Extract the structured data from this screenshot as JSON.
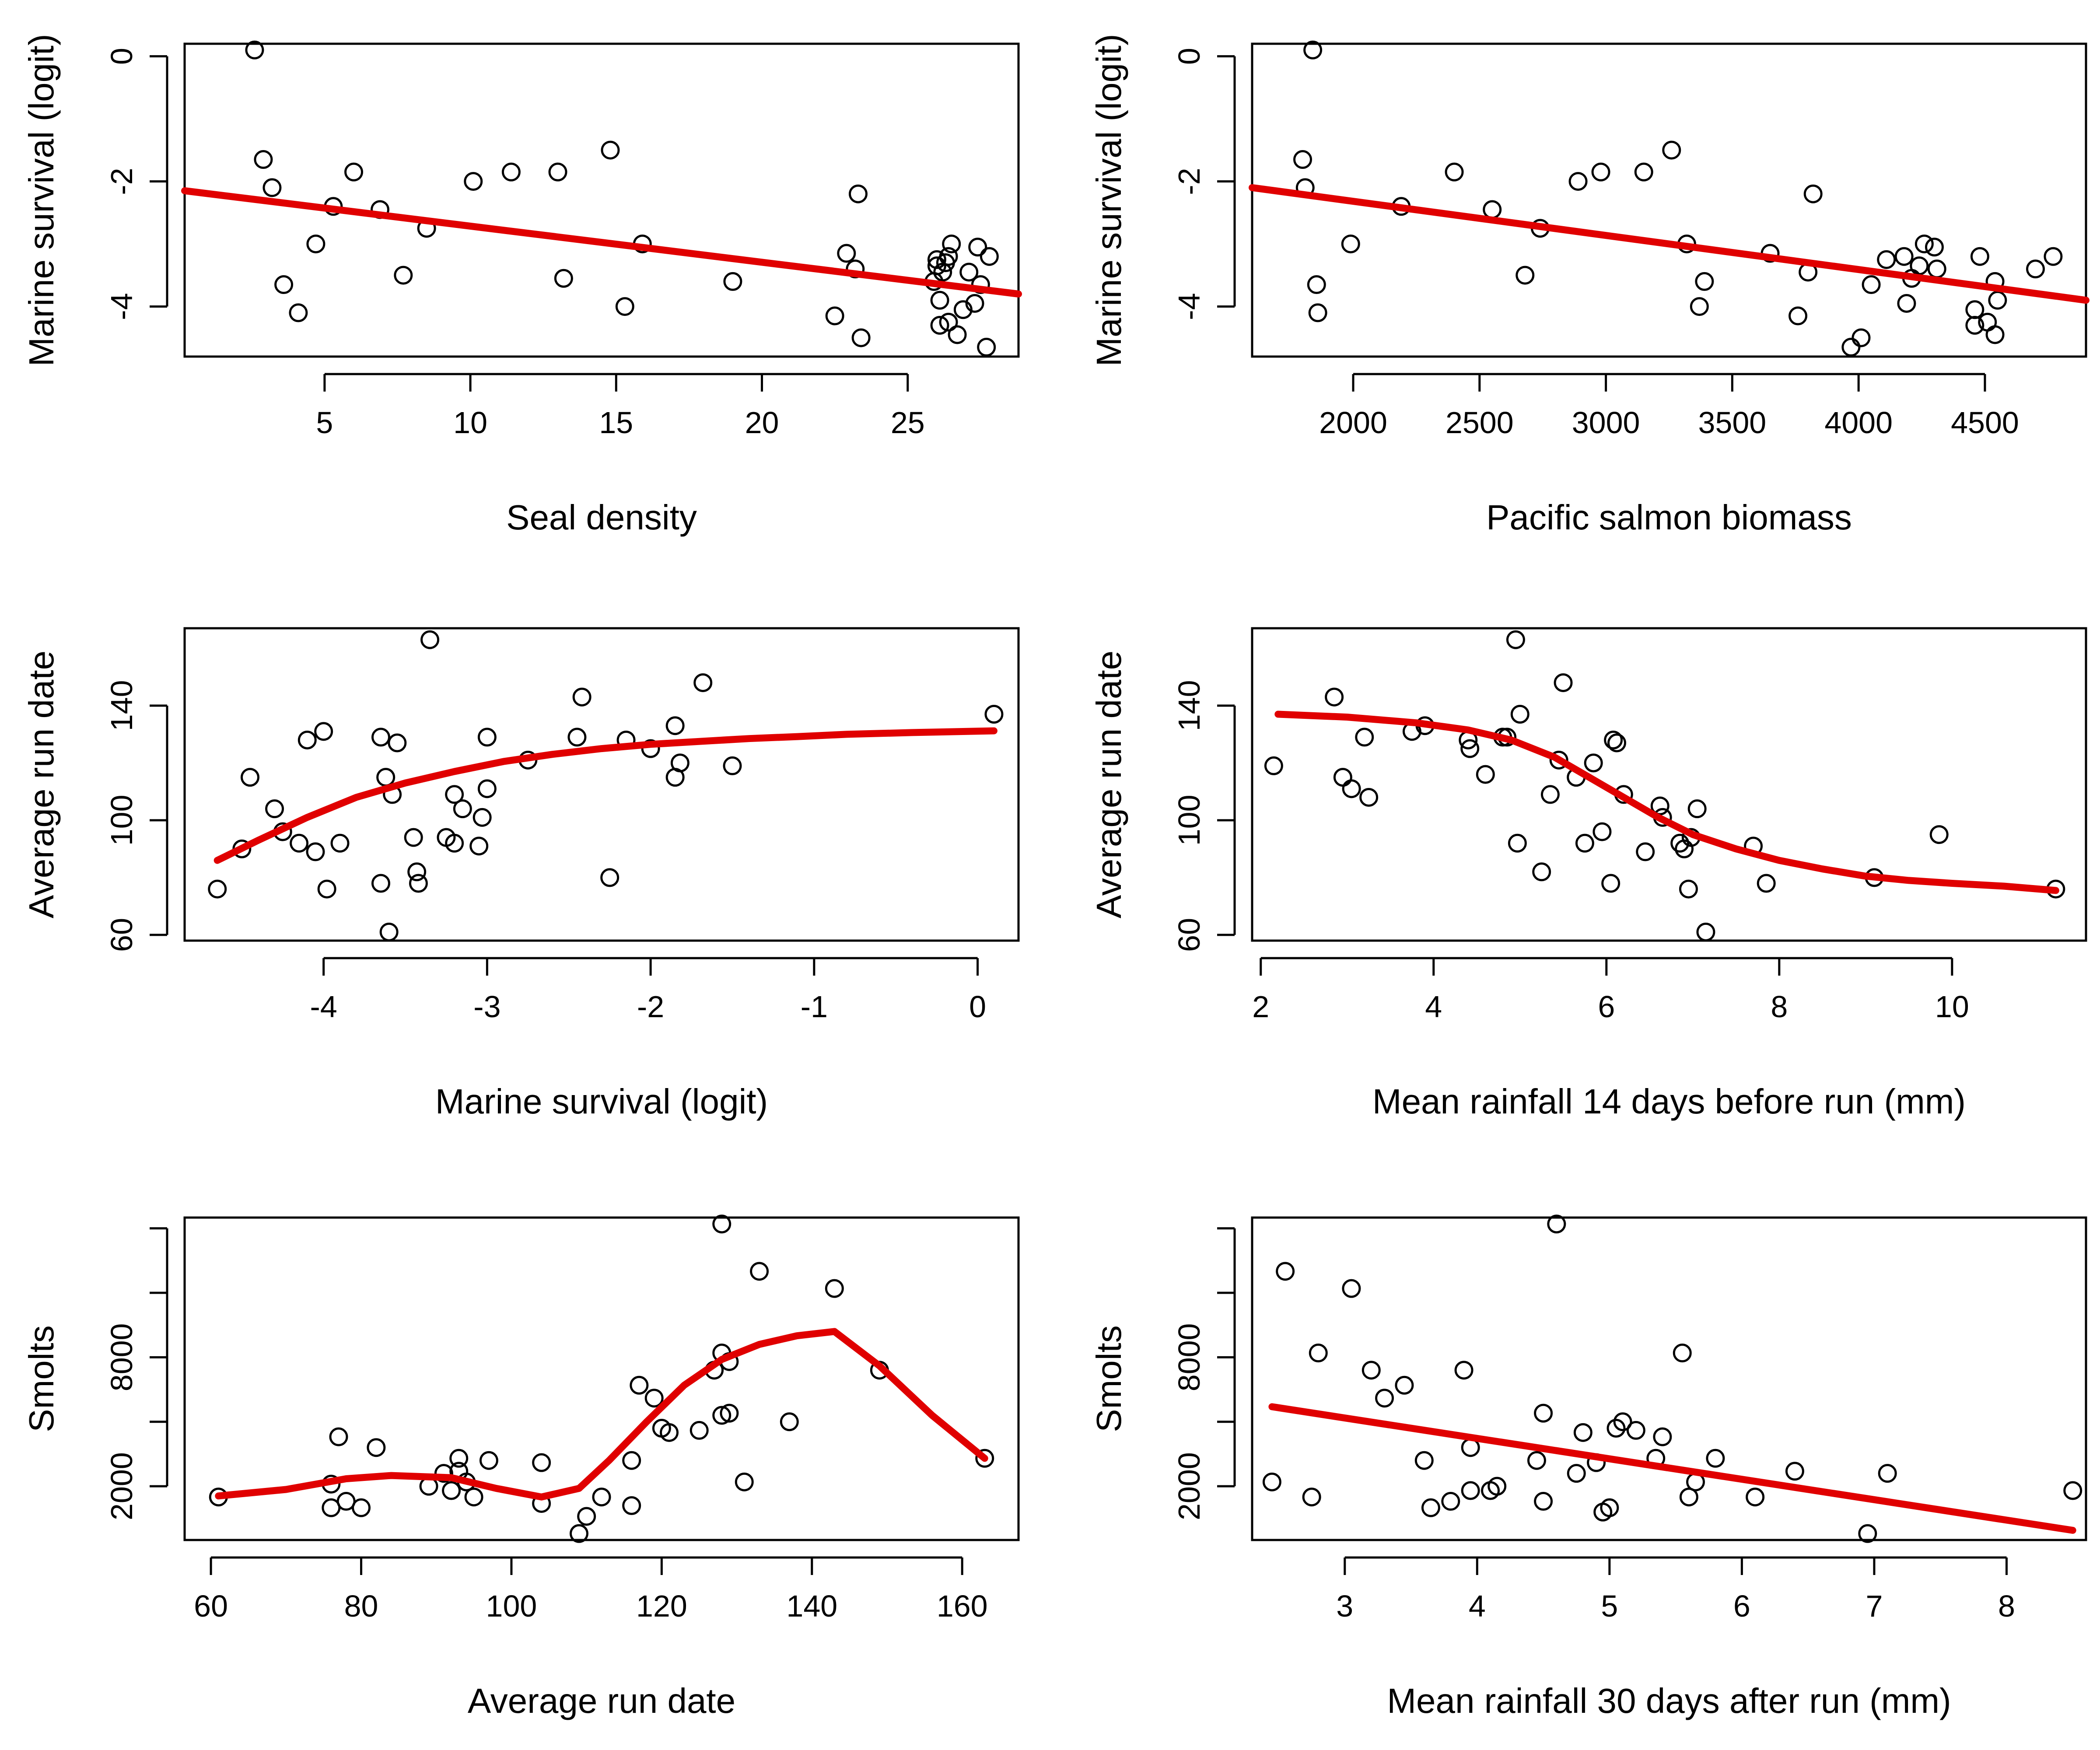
{
  "colors": {
    "points": "#000000",
    "fit_line": "#e00000",
    "background": "#ffffff"
  },
  "chart_data": [
    {
      "type": "scatter",
      "xlabel": "Seal density",
      "ylabel": "Marine survival (logit)",
      "xlim": [
        0.2,
        28.8
      ],
      "ylim": [
        -4.8,
        0.2
      ],
      "xticks": [
        5,
        10,
        15,
        20,
        25
      ],
      "xtick_labels": [
        "5",
        "10",
        "15",
        "20",
        "25"
      ],
      "yticks": [
        -4,
        -2,
        0
      ],
      "ytick_labels": [
        "-4",
        "-2",
        "0"
      ],
      "grid": false,
      "points": [
        [
          2.6,
          0.1
        ],
        [
          2.9,
          -1.65
        ],
        [
          3.2,
          -2.1
        ],
        [
          3.6,
          -3.65
        ],
        [
          4.1,
          -4.1
        ],
        [
          4.7,
          -3.0
        ],
        [
          5.3,
          -2.4
        ],
        [
          6.0,
          -1.85
        ],
        [
          6.9,
          -2.45
        ],
        [
          7.7,
          -3.5
        ],
        [
          8.5,
          -2.75
        ],
        [
          10.1,
          -2.0
        ],
        [
          11.4,
          -1.85
        ],
        [
          13.0,
          -1.85
        ],
        [
          13.2,
          -3.55
        ],
        [
          14.8,
          -1.5
        ],
        [
          15.3,
          -4.0
        ],
        [
          15.9,
          -3.0
        ],
        [
          19.0,
          -3.6
        ],
        [
          22.5,
          -4.15
        ],
        [
          22.9,
          -3.15
        ],
        [
          23.2,
          -3.4
        ],
        [
          23.3,
          -2.2
        ],
        [
          23.4,
          -4.5
        ],
        [
          25.9,
          -3.6
        ],
        [
          26.0,
          -3.25
        ],
        [
          26.0,
          -3.35
        ],
        [
          26.1,
          -3.9
        ],
        [
          26.2,
          -3.45
        ],
        [
          26.3,
          -3.3
        ],
        [
          26.1,
          -4.3
        ],
        [
          26.4,
          -3.2
        ],
        [
          26.4,
          -4.25
        ],
        [
          26.5,
          -3.0
        ],
        [
          26.7,
          -4.45
        ],
        [
          26.9,
          -4.05
        ],
        [
          27.1,
          -3.45
        ],
        [
          27.3,
          -3.95
        ],
        [
          27.4,
          -3.05
        ],
        [
          27.5,
          -3.65
        ],
        [
          27.8,
          -3.2
        ],
        [
          27.7,
          -4.65
        ]
      ],
      "fit": [
        [
          0.2,
          -2.15
        ],
        [
          28.8,
          -3.8
        ]
      ]
    },
    {
      "type": "scatter",
      "xlabel": "Pacific salmon biomass",
      "ylabel": "Marine survival (logit)",
      "xlim": [
        1600,
        4900
      ],
      "ylim": [
        -4.8,
        0.2
      ],
      "xticks": [
        2000,
        2500,
        3000,
        3500,
        4000,
        4500
      ],
      "xtick_labels": [
        "2000",
        "2500",
        "3000",
        "3500",
        "4000",
        "4500"
      ],
      "yticks": [
        -4,
        -2,
        0
      ],
      "ytick_labels": [
        "-4",
        "-2",
        "0"
      ],
      "grid": false,
      "points": [
        [
          1800,
          -1.65
        ],
        [
          1810,
          -2.1
        ],
        [
          1840,
          0.1
        ],
        [
          1855,
          -3.65
        ],
        [
          1860,
          -4.1
        ],
        [
          1990,
          -3.0
        ],
        [
          2190,
          -2.4
        ],
        [
          2400,
          -1.85
        ],
        [
          2550,
          -2.45
        ],
        [
          2680,
          -3.5
        ],
        [
          2740,
          -2.75
        ],
        [
          2890,
          -2.0
        ],
        [
          2980,
          -1.85
        ],
        [
          3150,
          -1.85
        ],
        [
          3260,
          -1.5
        ],
        [
          3320,
          -3.0
        ],
        [
          3370,
          -4.0
        ],
        [
          3390,
          -3.6
        ],
        [
          3650,
          -3.15
        ],
        [
          3760,
          -4.15
        ],
        [
          3800,
          -3.45
        ],
        [
          3820,
          -2.2
        ],
        [
          3970,
          -4.65
        ],
        [
          4010,
          -4.5
        ],
        [
          4050,
          -3.65
        ],
        [
          4110,
          -3.25
        ],
        [
          4180,
          -3.2
        ],
        [
          4190,
          -3.95
        ],
        [
          4210,
          -3.55
        ],
        [
          4240,
          -3.35
        ],
        [
          4260,
          -3.0
        ],
        [
          4300,
          -3.05
        ],
        [
          4310,
          -3.4
        ],
        [
          4460,
          -4.05
        ],
        [
          4460,
          -4.3
        ],
        [
          4480,
          -3.2
        ],
        [
          4510,
          -4.25
        ],
        [
          4540,
          -3.6
        ],
        [
          4540,
          -4.45
        ],
        [
          4550,
          -3.9
        ],
        [
          4700,
          -3.4
        ],
        [
          4770,
          -3.2
        ]
      ],
      "fit": [
        [
          1600,
          -2.1
        ],
        [
          4900,
          -3.9
        ]
      ]
    },
    {
      "type": "scatter",
      "xlabel": "Marine survival (logit)",
      "ylabel": "Average run date",
      "xlim": [
        -4.85,
        0.25
      ],
      "ylim": [
        58,
        167
      ],
      "xticks": [
        -4,
        -3,
        -2,
        -1,
        0
      ],
      "xtick_labels": [
        "-4",
        "-3",
        "-2",
        "-1",
        "0"
      ],
      "yticks": [
        60,
        100,
        140
      ],
      "ytick_labels": [
        "60",
        "100",
        "140"
      ],
      "grid": false,
      "points": [
        [
          -4.65,
          76
        ],
        [
          -4.5,
          90
        ],
        [
          -4.45,
          115
        ],
        [
          -4.3,
          104
        ],
        [
          -4.25,
          96
        ],
        [
          -4.15,
          92
        ],
        [
          -4.1,
          128
        ],
        [
          -4.05,
          89
        ],
        [
          -4.0,
          131
        ],
        [
          -3.98,
          76
        ],
        [
          -3.9,
          92
        ],
        [
          -3.65,
          129
        ],
        [
          -3.65,
          78
        ],
        [
          -3.62,
          115
        ],
        [
          -3.6,
          61
        ],
        [
          -3.58,
          109
        ],
        [
          -3.55,
          127
        ],
        [
          -3.45,
          94
        ],
        [
          -3.43,
          82
        ],
        [
          -3.42,
          78
        ],
        [
          -3.35,
          163
        ],
        [
          -3.25,
          94
        ],
        [
          -3.2,
          109
        ],
        [
          -3.2,
          92
        ],
        [
          -3.15,
          104
        ],
        [
          -3.05,
          91
        ],
        [
          -3.03,
          101
        ],
        [
          -3.0,
          129
        ],
        [
          -3.0,
          111
        ],
        [
          -2.75,
          121
        ],
        [
          -2.45,
          129
        ],
        [
          -2.42,
          143
        ],
        [
          -2.25,
          80
        ],
        [
          -2.15,
          128
        ],
        [
          -2.0,
          125
        ],
        [
          -1.85,
          115
        ],
        [
          -1.85,
          133
        ],
        [
          -1.82,
          120
        ],
        [
          -1.68,
          148
        ],
        [
          -1.5,
          119
        ],
        [
          0.1,
          137
        ]
      ],
      "fit": [
        [
          -4.65,
          86
        ],
        [
          -4.4,
          93
        ],
        [
          -4.1,
          101
        ],
        [
          -3.8,
          108
        ],
        [
          -3.5,
          113
        ],
        [
          -3.2,
          117
        ],
        [
          -2.9,
          120.5
        ],
        [
          -2.6,
          123
        ],
        [
          -2.3,
          125
        ],
        [
          -2.0,
          126.5
        ],
        [
          -1.7,
          127.5
        ],
        [
          -1.4,
          128.5
        ],
        [
          -1.1,
          129.2
        ],
        [
          -0.8,
          130
        ],
        [
          -0.4,
          130.6
        ],
        [
          0.1,
          131.2
        ]
      ]
    },
    {
      "type": "scatter",
      "xlabel": "Mean rainfall 14 days before run (mm)",
      "ylabel": "Average run date",
      "xlim": [
        1.9,
        11.55
      ],
      "ylim": [
        58,
        167
      ],
      "xticks": [
        2,
        4,
        6,
        8,
        10
      ],
      "xtick_labels": [
        "2",
        "4",
        "6",
        "8",
        "10"
      ],
      "yticks": [
        60,
        100,
        140
      ],
      "ytick_labels": [
        "60",
        "100",
        "140"
      ],
      "grid": false,
      "points": [
        [
          2.15,
          119
        ],
        [
          2.85,
          143
        ],
        [
          2.95,
          115
        ],
        [
          3.05,
          111
        ],
        [
          3.2,
          129
        ],
        [
          3.25,
          108
        ],
        [
          3.75,
          131
        ],
        [
          3.9,
          133
        ],
        [
          4.4,
          128
        ],
        [
          4.42,
          125
        ],
        [
          4.6,
          116
        ],
        [
          4.8,
          129
        ],
        [
          4.85,
          129
        ],
        [
          4.95,
          163
        ],
        [
          4.97,
          92
        ],
        [
          5.0,
          137
        ],
        [
          5.25,
          82
        ],
        [
          5.35,
          109
        ],
        [
          5.45,
          121
        ],
        [
          5.5,
          148
        ],
        [
          5.65,
          115
        ],
        [
          5.75,
          92
        ],
        [
          5.85,
          120
        ],
        [
          5.95,
          96
        ],
        [
          6.05,
          78
        ],
        [
          6.08,
          128
        ],
        [
          6.12,
          127
        ],
        [
          6.2,
          109
        ],
        [
          6.45,
          89
        ],
        [
          6.62,
          105
        ],
        [
          6.65,
          101
        ],
        [
          6.85,
          92
        ],
        [
          6.9,
          90
        ],
        [
          6.95,
          76
        ],
        [
          6.98,
          94
        ],
        [
          7.05,
          104
        ],
        [
          7.15,
          61
        ],
        [
          7.7,
          91
        ],
        [
          7.85,
          78
        ],
        [
          9.1,
          80
        ],
        [
          9.85,
          95
        ],
        [
          11.2,
          76
        ]
      ],
      "fit": [
        [
          2.2,
          137
        ],
        [
          3.0,
          136
        ],
        [
          3.8,
          134
        ],
        [
          4.4,
          131.5
        ],
        [
          4.9,
          128
        ],
        [
          5.4,
          122
        ],
        [
          5.8,
          115
        ],
        [
          6.2,
          108
        ],
        [
          6.6,
          101
        ],
        [
          7.0,
          95
        ],
        [
          7.5,
          90
        ],
        [
          8.0,
          86
        ],
        [
          8.5,
          83
        ],
        [
          9.0,
          80.5
        ],
        [
          9.5,
          79
        ],
        [
          10.0,
          78
        ],
        [
          10.6,
          77
        ],
        [
          11.2,
          75.5
        ]
      ]
    },
    {
      "type": "scatter",
      "xlabel": "Average run date",
      "ylabel": "Smolts",
      "xlim": [
        56.5,
        167.5
      ],
      "ylim": [
        -500,
        14500
      ],
      "xticks": [
        60,
        80,
        100,
        120,
        140,
        160
      ],
      "xtick_labels": [
        "60",
        "80",
        "100",
        "120",
        "140",
        "160"
      ],
      "yticks": [
        2000,
        8000
      ],
      "ytick_labels": [
        "2000",
        "8000"
      ],
      "yticks_unlabeled": [
        5000,
        11000,
        14000
      ],
      "grid": false,
      "points": [
        [
          61,
          1500
        ],
        [
          76,
          1000
        ],
        [
          76,
          2100
        ],
        [
          77,
          4300
        ],
        [
          78,
          1300
        ],
        [
          80,
          1000
        ],
        [
          82,
          3800
        ],
        [
          89,
          2000
        ],
        [
          91,
          2600
        ],
        [
          92,
          1800
        ],
        [
          93,
          3300
        ],
        [
          93,
          2700
        ],
        [
          94,
          2200
        ],
        [
          95,
          1500
        ],
        [
          97,
          3200
        ],
        [
          104,
          1200
        ],
        [
          104,
          3100
        ],
        [
          109,
          -200
        ],
        [
          110,
          600
        ],
        [
          112,
          1500
        ],
        [
          116,
          1100
        ],
        [
          116,
          3200
        ],
        [
          117,
          6700
        ],
        [
          119,
          6100
        ],
        [
          120,
          4700
        ],
        [
          121,
          4500
        ],
        [
          125,
          4600
        ],
        [
          127,
          7400
        ],
        [
          128,
          8200
        ],
        [
          128,
          5300
        ],
        [
          129,
          5400
        ],
        [
          128,
          14200
        ],
        [
          129,
          7800
        ],
        [
          131,
          2200
        ],
        [
          133,
          12000
        ],
        [
          137,
          5000
        ],
        [
          143,
          11200
        ],
        [
          149,
          7400
        ],
        [
          163,
          3300
        ]
      ],
      "fit": [
        [
          61,
          1550
        ],
        [
          70,
          1850
        ],
        [
          78,
          2350
        ],
        [
          84,
          2500
        ],
        [
          92,
          2400
        ],
        [
          98,
          1900
        ],
        [
          104,
          1500
        ],
        [
          109,
          1900
        ],
        [
          113,
          3200
        ],
        [
          118,
          5000
        ],
        [
          123,
          6700
        ],
        [
          128,
          7900
        ],
        [
          133,
          8600
        ],
        [
          138,
          9000
        ],
        [
          143,
          9200
        ],
        [
          149,
          7600
        ],
        [
          156,
          5300
        ],
        [
          163,
          3300
        ]
      ]
    },
    {
      "type": "scatter",
      "xlabel": "Mean rainfall 30 days after run (mm)",
      "ylabel": "Smolts",
      "xlim": [
        2.3,
        8.6
      ],
      "ylim": [
        -500,
        14500
      ],
      "xticks": [
        3,
        4,
        5,
        6,
        7,
        8
      ],
      "xtick_labels": [
        "3",
        "4",
        "5",
        "6",
        "7",
        "8"
      ],
      "yticks": [
        2000,
        8000
      ],
      "ytick_labels": [
        "2000",
        "8000"
      ],
      "yticks_unlabeled": [
        5000,
        11000,
        14000
      ],
      "grid": false,
      "points": [
        [
          2.45,
          2200
        ],
        [
          2.55,
          12000
        ],
        [
          2.75,
          1500
        ],
        [
          2.8,
          8200
        ],
        [
          3.05,
          11200
        ],
        [
          3.2,
          7400
        ],
        [
          3.3,
          6100
        ],
        [
          3.45,
          6700
        ],
        [
          3.6,
          3200
        ],
        [
          3.65,
          1000
        ],
        [
          3.8,
          1300
        ],
        [
          3.9,
          7400
        ],
        [
          3.95,
          1800
        ],
        [
          3.95,
          3800
        ],
        [
          4.1,
          1800
        ],
        [
          4.15,
          2000
        ],
        [
          4.45,
          3200
        ],
        [
          4.5,
          5400
        ],
        [
          4.5,
          1300
        ],
        [
          4.6,
          14200
        ],
        [
          4.75,
          2600
        ],
        [
          4.8,
          4500
        ],
        [
          4.9,
          3100
        ],
        [
          4.95,
          800
        ],
        [
          5.0,
          1000
        ],
        [
          5.05,
          4700
        ],
        [
          5.1,
          5000
        ],
        [
          5.2,
          4600
        ],
        [
          5.35,
          3300
        ],
        [
          5.4,
          4300
        ],
        [
          5.55,
          8200
        ],
        [
          5.6,
          1500
        ],
        [
          5.65,
          2200
        ],
        [
          5.8,
          3300
        ],
        [
          6.1,
          1500
        ],
        [
          6.4,
          2700
        ],
        [
          6.95,
          -200
        ],
        [
          7.1,
          2600
        ],
        [
          8.5,
          1800
        ]
      ],
      "fit": [
        [
          2.45,
          5700
        ],
        [
          8.5,
          -50
        ]
      ]
    }
  ]
}
